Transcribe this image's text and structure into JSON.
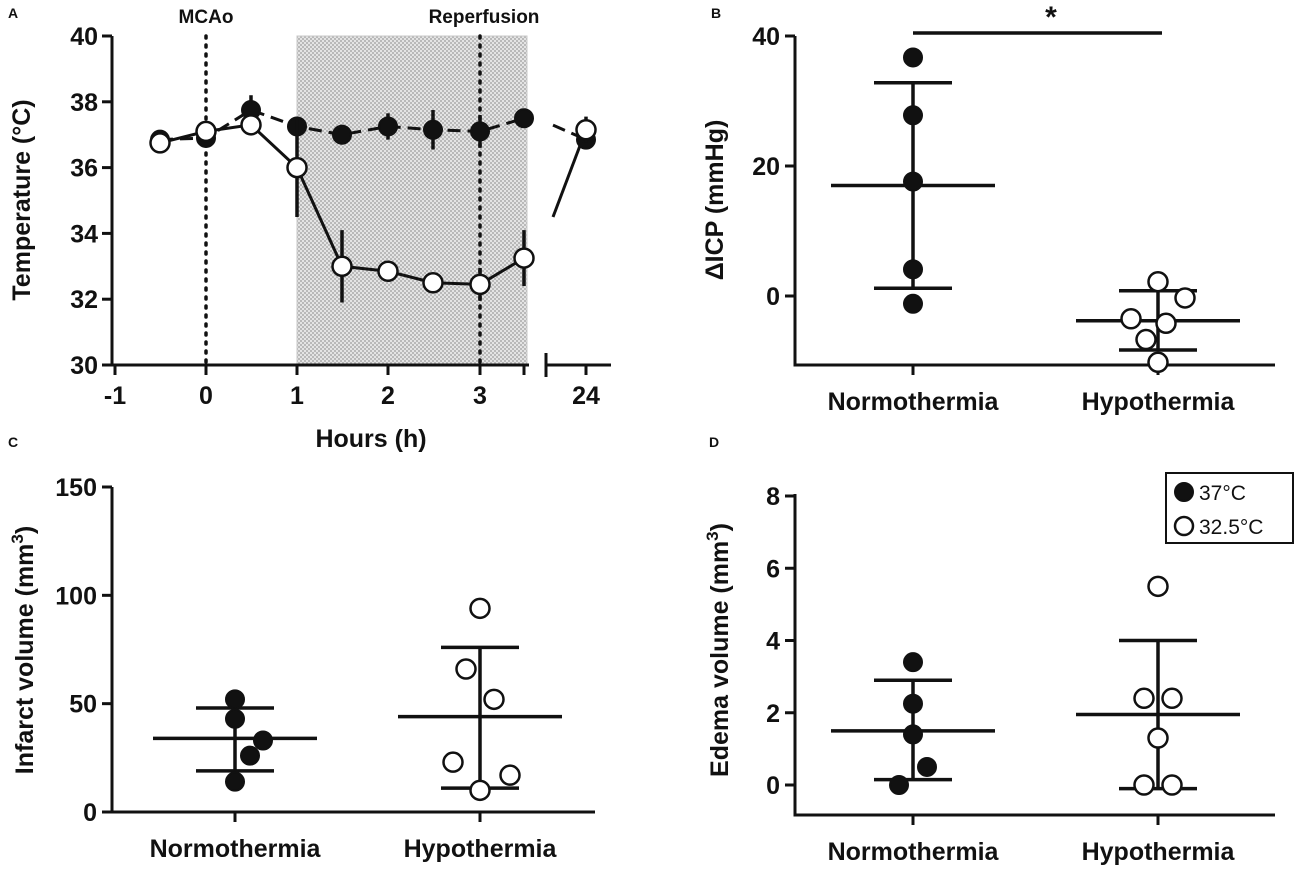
{
  "chart_data": [
    {
      "panel": "A",
      "type": "line",
      "xlabel": "Hours (h)",
      "ylabel": "Temperature (°C)",
      "ylim": [
        30,
        40
      ],
      "yticks": [
        30,
        32,
        34,
        36,
        38,
        40
      ],
      "xticks": [
        "-1",
        "0",
        "1",
        "2",
        "3",
        "24"
      ],
      "events": [
        {
          "label": "MCAo",
          "x": 0
        },
        {
          "label": "Reperfusion",
          "x": 3
        }
      ],
      "shaded_region": [
        1,
        3.5
      ],
      "series": [
        {
          "name": "37°C",
          "marker": "filled",
          "linestyle": "dashed",
          "x": [
            -0.5,
            0,
            0.5,
            1,
            1.5,
            2,
            2.5,
            3,
            3.5,
            24
          ],
          "values": [
            36.85,
            36.9,
            37.75,
            37.25,
            37.0,
            37.25,
            37.15,
            37.1,
            37.5,
            36.85
          ],
          "err": [
            0.2,
            0.25,
            0.45,
            0.2,
            0.3,
            0.4,
            0.6,
            0.5,
            0.2,
            0.3
          ]
        },
        {
          "name": "32.5°C",
          "marker": "open",
          "linestyle": "solid",
          "x": [
            -0.5,
            0,
            0.5,
            1,
            1.5,
            2,
            2.5,
            3,
            3.5,
            24
          ],
          "values": [
            36.75,
            37.1,
            37.3,
            36.0,
            33.0,
            32.85,
            32.5,
            32.45,
            33.25,
            37.15
          ],
          "err": [
            0.15,
            0.25,
            0.2,
            1.5,
            1.1,
            0.2,
            0.2,
            0.5,
            0.85,
            0.4
          ]
        }
      ]
    },
    {
      "panel": "B",
      "type": "scatter",
      "ylabel": "ΔICP (mmHg)",
      "ylim": [
        -11,
        40
      ],
      "yticks": [
        0,
        20,
        40
      ],
      "categories": [
        "Normothermia",
        "Hypothermia"
      ],
      "significance": "*",
      "groups": [
        {
          "name": "37°C",
          "marker": "filled",
          "points": [
            36.7,
            27.8,
            17.6,
            4.1,
            -1.2
          ],
          "mean": 17.0,
          "sd_low": 1.2,
          "sd_high": 32.8
        },
        {
          "name": "32.5°C",
          "marker": "open",
          "points": [
            2.2,
            -0.3,
            -3.5,
            -4.2,
            -6.7,
            -10.2
          ],
          "mean": -3.8,
          "sd_low": -8.3,
          "sd_high": 0.8
        }
      ]
    },
    {
      "panel": "C",
      "type": "scatter",
      "ylabel": "Infarct volume (mm3)",
      "ylim": [
        0,
        150
      ],
      "yticks": [
        0,
        50,
        100,
        150
      ],
      "categories": [
        "Normothermia",
        "Hypothermia"
      ],
      "groups": [
        {
          "name": "37°C",
          "marker": "filled",
          "points": [
            52,
            43,
            33,
            26,
            14
          ],
          "mean": 34,
          "sd_low": 19,
          "sd_high": 48
        },
        {
          "name": "32.5°C",
          "marker": "open",
          "points": [
            94,
            66,
            52,
            23,
            17,
            10
          ],
          "mean": 44,
          "sd_low": 11,
          "sd_high": 76
        }
      ]
    },
    {
      "panel": "D",
      "type": "scatter",
      "ylabel": "Edema volume (mm3)",
      "ylim": [
        -0.4,
        8
      ],
      "yticks": [
        0,
        2,
        4,
        6,
        8
      ],
      "categories": [
        "Normothermia",
        "Hypothermia"
      ],
      "groups": [
        {
          "name": "37°C",
          "marker": "filled",
          "points": [
            3.4,
            2.25,
            1.4,
            0.5,
            0.0
          ],
          "mean": 1.5,
          "sd_low": 0.15,
          "sd_high": 2.9
        },
        {
          "name": "32.5°C",
          "marker": "open",
          "points": [
            5.5,
            2.4,
            2.4,
            1.3,
            0.0,
            0.0
          ],
          "mean": 1.95,
          "sd_low": -0.1,
          "sd_high": 4.0
        }
      ]
    }
  ],
  "legend": [
    {
      "label": "37°C",
      "marker": "filled"
    },
    {
      "label": "32.5°C",
      "marker": "open"
    }
  ]
}
